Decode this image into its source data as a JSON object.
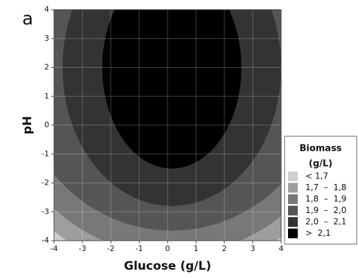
{
  "chart_data": {
    "type": "contour",
    "panel_label": "a",
    "xlabel": "Glucose (g/L)",
    "ylabel": "pH",
    "xlim": [
      -4,
      4
    ],
    "ylim": [
      -4,
      4
    ],
    "xticks": [
      -4,
      -3,
      -2,
      -1,
      0,
      1,
      2,
      3,
      4
    ],
    "yticks": [
      -4,
      -3,
      -2,
      -1,
      0,
      1,
      2,
      3,
      4
    ],
    "grid": true,
    "legend_title": [
      "Biomass",
      "(g/L)"
    ],
    "series": [
      {
        "name": "< 1,7",
        "color": "#cdcdcd"
      },
      {
        "name": "1,7  –  1,8",
        "color": "#9e9e9e",
        "ellipse": {
          "cx": 0.15,
          "cy": 2.0,
          "rx": 6.9,
          "ry": 7.1
        }
      },
      {
        "name": "1,8  –  1,9",
        "color": "#787878",
        "ellipse": {
          "cx": 0.15,
          "cy": 2.0,
          "rx": 6.3,
          "ry": 6.5
        }
      },
      {
        "name": "1,9  –  2,0",
        "color": "#555555",
        "ellipse": {
          "cx": 0.15,
          "cy": 2.0,
          "rx": 5.5,
          "ry": 5.65
        }
      },
      {
        "name": "2,0  –  2,1",
        "color": "#333333",
        "ellipse": {
          "cx": 0.15,
          "cy": 2.0,
          "rx": 3.85,
          "ry": 4.8
        }
      },
      {
        "name": ">  2,1",
        "color": "#000000",
        "ellipse": {
          "cx": 0.15,
          "cy": 2.0,
          "rx": 2.45,
          "ry": 3.5
        }
      }
    ]
  }
}
